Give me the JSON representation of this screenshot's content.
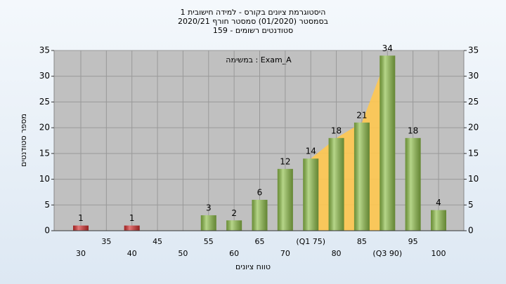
{
  "chart_data": {
    "type": "bar",
    "title": [
      "היסטוגרמת ציונים בקורס - למידה חישובית 1",
      "בסמסטר  (01/2020)  סמסטר חורף 2020/21",
      "סטודנטים רשומים - 159"
    ],
    "annotation": "Exam_A : במשימה",
    "x_label": "טווח ציונים",
    "y_label": "מספר סטודנטים",
    "categories": [
      "30",
      "35",
      "40",
      "45",
      "50",
      "55",
      "60",
      "65",
      "70",
      "(Q1 75)",
      "80",
      "85",
      "(Q3 90)",
      "95",
      "100"
    ],
    "values": [
      1,
      0,
      1,
      0,
      0,
      3,
      2,
      6,
      12,
      14,
      18,
      21,
      34,
      18,
      4
    ],
    "colors": [
      "#d43030",
      "#8fbf4a",
      "#d43030",
      "#8fbf4a",
      "#8fbf4a",
      "#8fbf4a",
      "#8fbf4a",
      "#8fbf4a",
      "#8fbf4a",
      "#8fbf4a",
      "#8fbf4a",
      "#8fbf4a",
      "#8fbf4a",
      "#8fbf4a",
      "#8fbf4a"
    ],
    "ylim": [
      0,
      35
    ],
    "yticks": [
      0,
      5,
      10,
      15,
      20,
      25,
      30,
      35
    ],
    "y2lim": [
      0,
      35
    ],
    "y2ticks": [
      0,
      5,
      10,
      15,
      20,
      25,
      30,
      35
    ],
    "grid": true
  }
}
